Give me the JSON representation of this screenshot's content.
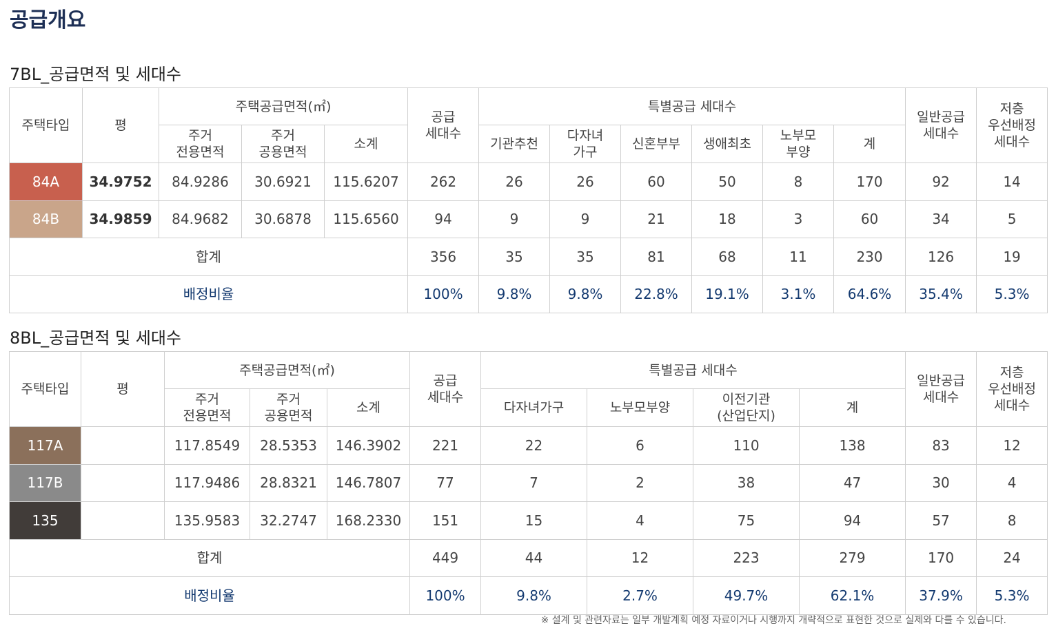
{
  "header": {
    "title": "공급개요"
  },
  "sections": [
    {
      "heading": "7BL_공급면적 및 세대수",
      "table": {
        "head": {
          "type": "주택타입",
          "pyeong": "평",
          "area_group": "주택공급면적(㎡)",
          "area": [
            "주거\n전용면적",
            "주거\n공용면적",
            "소계"
          ],
          "supply": "공급\n세대수",
          "special_group": "특별공급 세대수",
          "special": [
            "기관추천",
            "다자녀\n가구",
            "신혼부부",
            "생애최초",
            "노부모\n부양",
            "계"
          ],
          "general": "일반공급\n세대수",
          "low": "저층\n우선배정\n세대수"
        },
        "rows": [
          {
            "type": "84A",
            "color": "#c8604e",
            "pyeong": "34.9752",
            "values": [
              "84.9286",
              "30.6921",
              "115.6207",
              "262",
              "26",
              "26",
              "60",
              "50",
              "8",
              "170",
              "92",
              "14"
            ]
          },
          {
            "type": "84B",
            "color": "#c9a58a",
            "pyeong": "34.9859",
            "values": [
              "84.9682",
              "30.6878",
              "115.6560",
              "94",
              "9",
              "9",
              "21",
              "18",
              "3",
              "60",
              "34",
              "5"
            ]
          }
        ],
        "total": {
          "label": "합계",
          "values": [
            "356",
            "35",
            "35",
            "81",
            "68",
            "11",
            "230",
            "126",
            "19"
          ]
        },
        "ratio": {
          "label": "배정비율",
          "values": [
            "100%",
            "9.8%",
            "9.8%",
            "22.8%",
            "19.1%",
            "3.1%",
            "64.6%",
            "35.4%",
            "5.3%"
          ]
        }
      }
    },
    {
      "heading": "8BL_공급면적 및 세대수",
      "table": {
        "head": {
          "type": "주택타입",
          "pyeong": "평",
          "area_group": "주택공급면적(㎡)",
          "area": [
            "주거\n전용면적",
            "주거\n공용면적",
            "소계"
          ],
          "supply": "공급\n세대수",
          "special_group": "특별공급 세대수",
          "special": [
            "다자녀가구",
            "노부모부양",
            "이전기관\n(산업단지)",
            "계"
          ],
          "general": "일반공급\n세대수",
          "low": "저층\n우선배정\n세대수"
        },
        "rows": [
          {
            "type": "117A",
            "color": "#8b705b",
            "values": [
              "117.8549",
              "28.5353",
              "146.3902",
              "221",
              "22",
              "6",
              "110",
              "138",
              "83",
              "12"
            ]
          },
          {
            "type": "117B",
            "color": "#8a8a8a",
            "values": [
              "117.9486",
              "28.8321",
              "146.7807",
              "77",
              "7",
              "2",
              "38",
              "47",
              "30",
              "4"
            ]
          },
          {
            "type": "135",
            "color": "#413c39",
            "values": [
              "135.9583",
              "32.2747",
              "168.2330",
              "151",
              "15",
              "4",
              "75",
              "94",
              "57",
              "8"
            ]
          }
        ],
        "total": {
          "label": "합계",
          "values": [
            "449",
            "44",
            "12",
            "223",
            "279",
            "170",
            "24"
          ]
        },
        "ratio": {
          "label": "배정비율",
          "values": [
            "100%",
            "9.8%",
            "2.7%",
            "49.7%",
            "62.1%",
            "37.9%",
            "5.3%"
          ]
        }
      }
    }
  ],
  "footnote": "※ 설계 및 관련자료는 일부 개발계획 예정 자료이거나 시행까지 개략적으로 표현한 것으로 실제와 다를 수 있습니다."
}
